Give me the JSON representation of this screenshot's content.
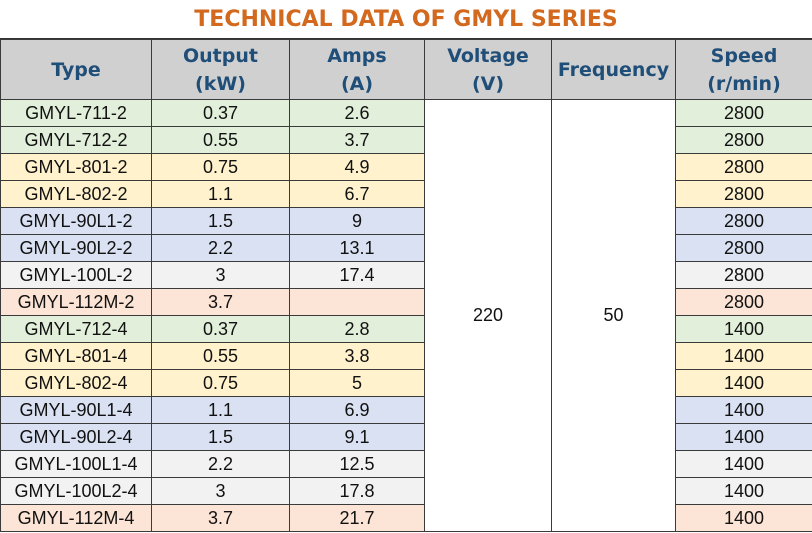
{
  "title": "TECHNICAL DATA OF GMYL SERIES",
  "headers": [
    {
      "line1": "Type",
      "line2": ""
    },
    {
      "line1": "Output",
      "line2": "(kW)"
    },
    {
      "line1": "Amps",
      "line2": "(A)"
    },
    {
      "line1": "Voltage",
      "line2": "(V)"
    },
    {
      "line1": "Frequency",
      "line2": ""
    },
    {
      "line1": "Speed",
      "line2": "(r/min)"
    }
  ],
  "voltage": "220",
  "frequency": "50",
  "colors": {
    "green": "#e2efda",
    "yellow": "#fff2cc",
    "blue": "#d9e1f2",
    "grey": "#f2f2f2",
    "peach": "#fce4d6",
    "title": "#d2691e",
    "header_text": "#1f4e79"
  },
  "rows": [
    {
      "type": "GMYL-711-2",
      "output": "0.37",
      "amps": "2.6",
      "speed": "2800",
      "color": "green"
    },
    {
      "type": "GMYL-712-2",
      "output": "0.55",
      "amps": "3.7",
      "speed": "2800",
      "color": "green"
    },
    {
      "type": "GMYL-801-2",
      "output": "0.75",
      "amps": "4.9",
      "speed": "2800",
      "color": "yellow"
    },
    {
      "type": "GMYL-802-2",
      "output": "1.1",
      "amps": "6.7",
      "speed": "2800",
      "color": "yellow"
    },
    {
      "type": "GMYL-90L1-2",
      "output": "1.5",
      "amps": "9",
      "speed": "2800",
      "color": "blue"
    },
    {
      "type": "GMYL-90L2-2",
      "output": "2.2",
      "amps": "13.1",
      "speed": "2800",
      "color": "blue"
    },
    {
      "type": "GMYL-100L-2",
      "output": "3",
      "amps": "17.4",
      "speed": "2800",
      "color": "grey"
    },
    {
      "type": "GMYL-112M-2",
      "output": "3.7",
      "amps": "",
      "speed": "2800",
      "color": "peach"
    },
    {
      "type": "GMYL-712-4",
      "output": "0.37",
      "amps": "2.8",
      "speed": "1400",
      "color": "green"
    },
    {
      "type": "GMYL-801-4",
      "output": "0.55",
      "amps": "3.8",
      "speed": "1400",
      "color": "yellow"
    },
    {
      "type": "GMYL-802-4",
      "output": "0.75",
      "amps": "5",
      "speed": "1400",
      "color": "yellow"
    },
    {
      "type": "GMYL-90L1-4",
      "output": "1.1",
      "amps": "6.9",
      "speed": "1400",
      "color": "blue"
    },
    {
      "type": "GMYL-90L2-4",
      "output": "1.5",
      "amps": "9.1",
      "speed": "1400",
      "color": "blue"
    },
    {
      "type": "GMYL-100L1-4",
      "output": "2.2",
      "amps": "12.5",
      "speed": "1400",
      "color": "grey"
    },
    {
      "type": "GMYL-100L2-4",
      "output": "3",
      "amps": "17.8",
      "speed": "1400",
      "color": "grey"
    },
    {
      "type": "GMYL-112M-4",
      "output": "3.7",
      "amps": "21.7",
      "speed": "1400",
      "color": "peach"
    }
  ]
}
